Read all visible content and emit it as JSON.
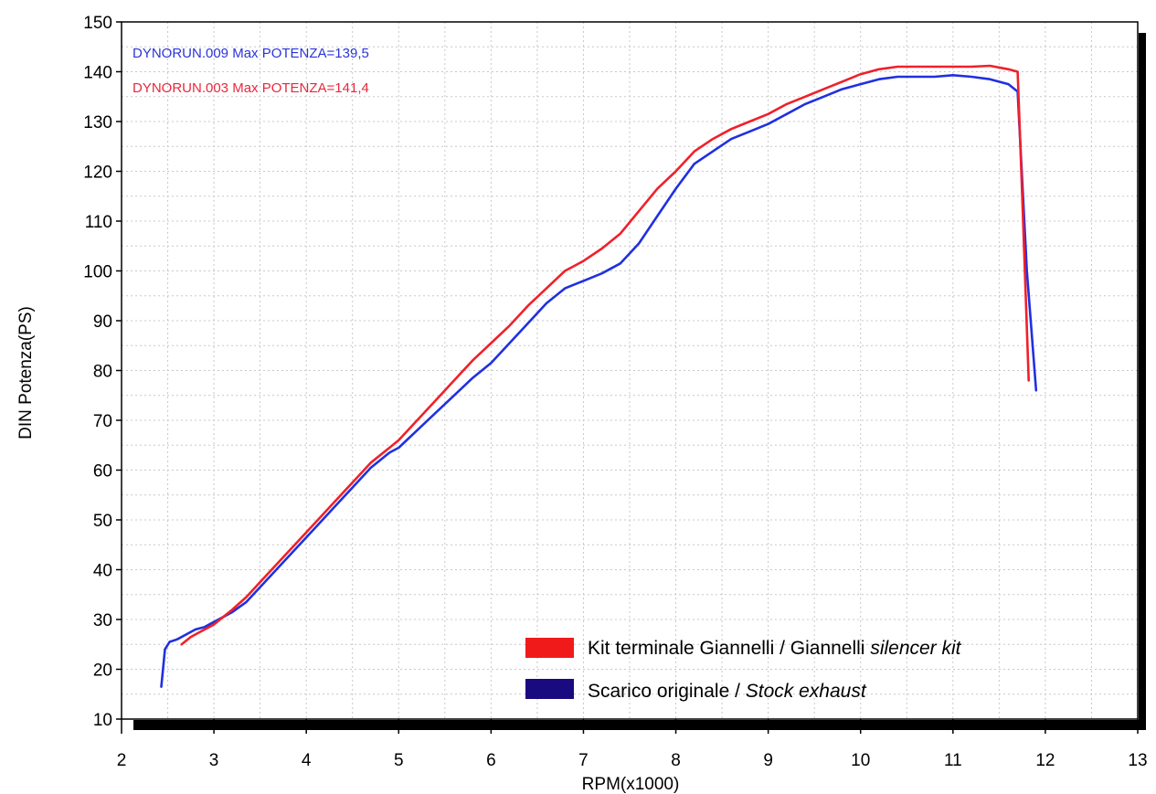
{
  "chart_data": {
    "type": "line",
    "xlabel": "RPM(x1000)",
    "ylabel": "DIN Potenza(PS)",
    "xlim": [
      2,
      13
    ],
    "ylim": [
      10,
      150
    ],
    "xticks": [
      "2",
      "3",
      "4",
      "5",
      "6",
      "7",
      "8",
      "9",
      "10",
      "11",
      "12",
      "13"
    ],
    "yticks": [
      "10",
      "20",
      "30",
      "40",
      "50",
      "60",
      "70",
      "80",
      "90",
      "100",
      "110",
      "120",
      "130",
      "140",
      "150"
    ],
    "grid": true,
    "legend_position": "bottom-right",
    "annotations": [
      {
        "text": "DYNORUN.009  Max POTENZA=139,5",
        "color": "#2a35d8"
      },
      {
        "text": "DYNORUN.003  Max POTENZA=141,4",
        "color": "#e8283c"
      }
    ],
    "legend": [
      {
        "name": "Kit terminale Giannelli / Giannelli ",
        "name_italic": "silencer kit",
        "color": "#f01a1a"
      },
      {
        "name": "Scarico originale / ",
        "name_italic": "Stock exhaust",
        "color": "#1a0a80"
      }
    ],
    "series": [
      {
        "name": "Kit terminale Giannelli / Giannelli silencer kit",
        "color": "#f0202a",
        "x": [
          2.65,
          2.75,
          2.85,
          2.95,
          3.0,
          3.1,
          3.2,
          3.35,
          3.5,
          3.7,
          3.9,
          4.1,
          4.3,
          4.5,
          4.7,
          4.9,
          5.0,
          5.2,
          5.4,
          5.6,
          5.8,
          6.0,
          6.2,
          6.4,
          6.6,
          6.8,
          6.9,
          7.0,
          7.2,
          7.4,
          7.6,
          7.8,
          8.0,
          8.2,
          8.4,
          8.6,
          8.8,
          9.0,
          9.2,
          9.4,
          9.6,
          9.8,
          10.0,
          10.2,
          10.4,
          10.6,
          10.8,
          11.0,
          11.2,
          11.4,
          11.6,
          11.7,
          11.75,
          11.82
        ],
        "y": [
          25,
          26.5,
          27.5,
          28.5,
          29,
          30.5,
          32,
          34.5,
          37.5,
          41.5,
          45.5,
          49.5,
          53.5,
          57.5,
          61.5,
          64.5,
          66,
          70,
          74,
          78,
          82,
          85.5,
          89,
          93,
          96.5,
          100,
          101,
          102,
          104.5,
          107.5,
          112,
          116.5,
          120,
          124,
          126.5,
          128.5,
          130,
          131.5,
          133.5,
          135,
          136.5,
          138,
          139.5,
          140.5,
          141,
          141,
          141,
          141,
          141,
          141.2,
          140.5,
          140,
          115,
          78
        ]
      },
      {
        "name": "Scarico originale / Stock exhaust",
        "color": "#2030e0",
        "x": [
          2.43,
          2.47,
          2.52,
          2.6,
          2.7,
          2.8,
          2.9,
          3.0,
          3.1,
          3.2,
          3.35,
          3.5,
          3.7,
          3.9,
          4.1,
          4.3,
          4.5,
          4.7,
          4.9,
          5.0,
          5.2,
          5.4,
          5.6,
          5.8,
          6.0,
          6.2,
          6.4,
          6.6,
          6.8,
          7.0,
          7.2,
          7.4,
          7.6,
          7.8,
          8.0,
          8.2,
          8.4,
          8.6,
          8.8,
          9.0,
          9.2,
          9.4,
          9.6,
          9.8,
          10.0,
          10.2,
          10.4,
          10.6,
          10.8,
          11.0,
          11.2,
          11.4,
          11.6,
          11.7,
          11.8,
          11.9
        ],
        "y": [
          16.5,
          24,
          25.5,
          26,
          27,
          28,
          28.5,
          29.5,
          30.5,
          31.5,
          33.5,
          36.5,
          40.5,
          44.5,
          48.5,
          52.5,
          56.5,
          60.5,
          63.5,
          64.5,
          68,
          71.5,
          75,
          78.5,
          81.5,
          85.5,
          89.5,
          93.5,
          96.5,
          98,
          99.5,
          101.5,
          105.5,
          111,
          116.5,
          121.5,
          124,
          126.5,
          128,
          129.5,
          131.5,
          133.5,
          135,
          136.5,
          137.5,
          138.5,
          139,
          139,
          139,
          139.3,
          139,
          138.5,
          137.5,
          136,
          100,
          76
        ]
      }
    ]
  }
}
